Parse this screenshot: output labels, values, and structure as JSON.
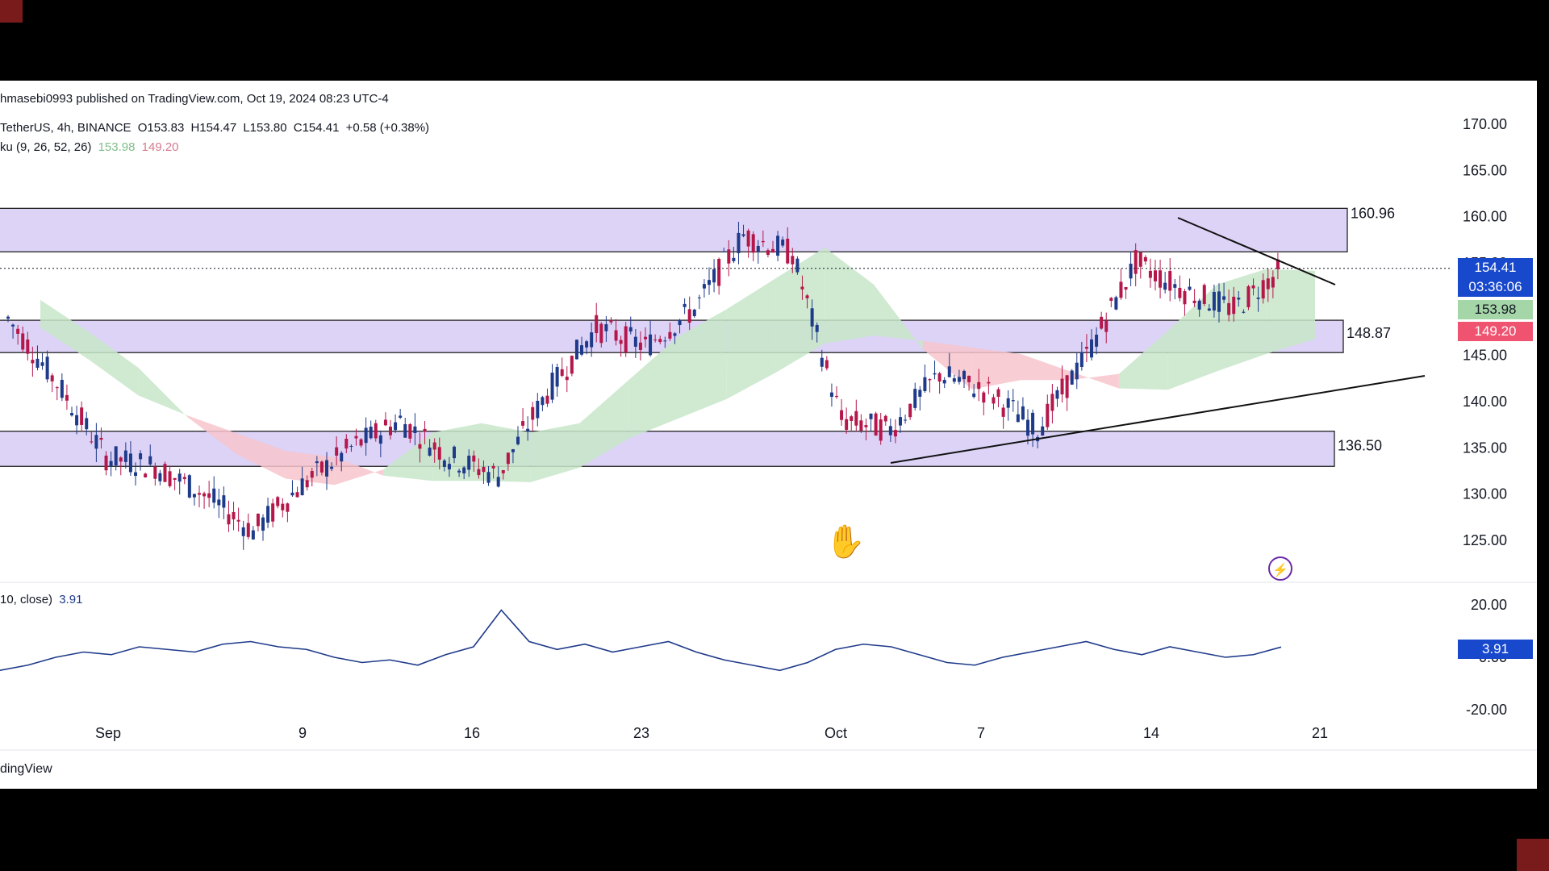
{
  "window": {
    "attribution": "hmasebi0993 published on TradingView.com, Oct 19, 2024 08:23 UTC-4",
    "brand": "dingView"
  },
  "legend": {
    "symbol": "TetherUS, 4h, BINANCE",
    "open": "O153.83",
    "high": "H154.47",
    "low": "L153.80",
    "close": "C154.41",
    "change": "+0.58 (+0.38%)",
    "ichimoku_label": "ku (9, 26, 52, 26)",
    "ichimoku_val1": "153.98",
    "ichimoku_val2": "149.20",
    "osc_label": "10, close)",
    "osc_value": "3.91"
  },
  "levels": {
    "top_zone": "160.96",
    "mid_zone": "148.87",
    "low_zone": "136.50"
  },
  "price_tags": {
    "last_price": "154.41",
    "countdown": "03:36:06",
    "span_a": "153.98",
    "span_b": "149.20",
    "osc_tag": "3.91"
  },
  "colors": {
    "zone_fill": "#dcd3f7",
    "cloud_green": "#c8e6c9",
    "cloud_red": "#f7c4cc",
    "candle_up": "#1e3a8a",
    "candle_down": "#b5174b",
    "tag_blue": "#1848cc",
    "tag_green": "#a5d6a7",
    "tag_red": "#ef5370"
  },
  "chart_data": {
    "type": "line",
    "title": "",
    "price_axis_ticks": [
      "170.00",
      "165.00",
      "160.00",
      "155.00",
      "150.00",
      "145.00",
      "140.00",
      "135.00",
      "130.00",
      "125.00"
    ],
    "time_axis_ticks": [
      "Sep",
      "9",
      "16",
      "23",
      "Oct",
      "7",
      "14",
      "21"
    ],
    "osc_axis_ticks": [
      "20.00",
      "0.00",
      "-20.00"
    ],
    "ylim": [
      120,
      172
    ],
    "horizontal_zones": [
      {
        "label": "160.96",
        "low": 156.2,
        "high": 160.9
      },
      {
        "label": "148.87",
        "low": 145.3,
        "high": 148.8
      },
      {
        "label": "136.50",
        "low": 133.0,
        "high": 136.8
      }
    ],
    "price_series": {
      "name": "TetherUS close (approx.)",
      "x": [
        "Aug 29",
        "Aug 31",
        "Sep 2",
        "Sep 4",
        "Sep 6",
        "Sep 8",
        "Sep 10",
        "Sep 12",
        "Sep 14",
        "Sep 16",
        "Sep 18",
        "Sep 20",
        "Sep 22",
        "Sep 24",
        "Sep 26",
        "Sep 28",
        "Sep 30",
        "Oct 2",
        "Oct 4",
        "Oct 6",
        "Oct 8",
        "Oct 10",
        "Oct 12",
        "Oct 14",
        "Oct 16",
        "Oct 18",
        "Oct 19"
      ],
      "values": [
        149,
        142,
        134,
        133,
        130,
        126,
        131,
        135,
        138,
        134,
        132,
        141,
        148,
        146,
        150,
        158,
        156,
        138,
        137,
        143,
        141,
        137,
        145,
        155,
        152,
        150,
        154.41
      ]
    },
    "ichimoku": {
      "span_a_last": 153.98,
      "span_b_last": 149.2
    },
    "oscillator": {
      "name": "(10, close)",
      "last": 3.91,
      "ylim": [
        -22,
        22
      ],
      "values": [
        -5,
        -3,
        0,
        2,
        1,
        4,
        3,
        2,
        5,
        6,
        4,
        3,
        0,
        -2,
        -1,
        -3,
        1,
        4,
        18,
        6,
        3,
        5,
        2,
        4,
        6,
        2,
        -1,
        -3,
        -5,
        -2,
        3,
        5,
        4,
        1,
        -2,
        -3,
        0,
        2,
        4,
        6,
        3,
        1,
        4,
        2,
        0,
        1,
        3.91
      ]
    }
  }
}
